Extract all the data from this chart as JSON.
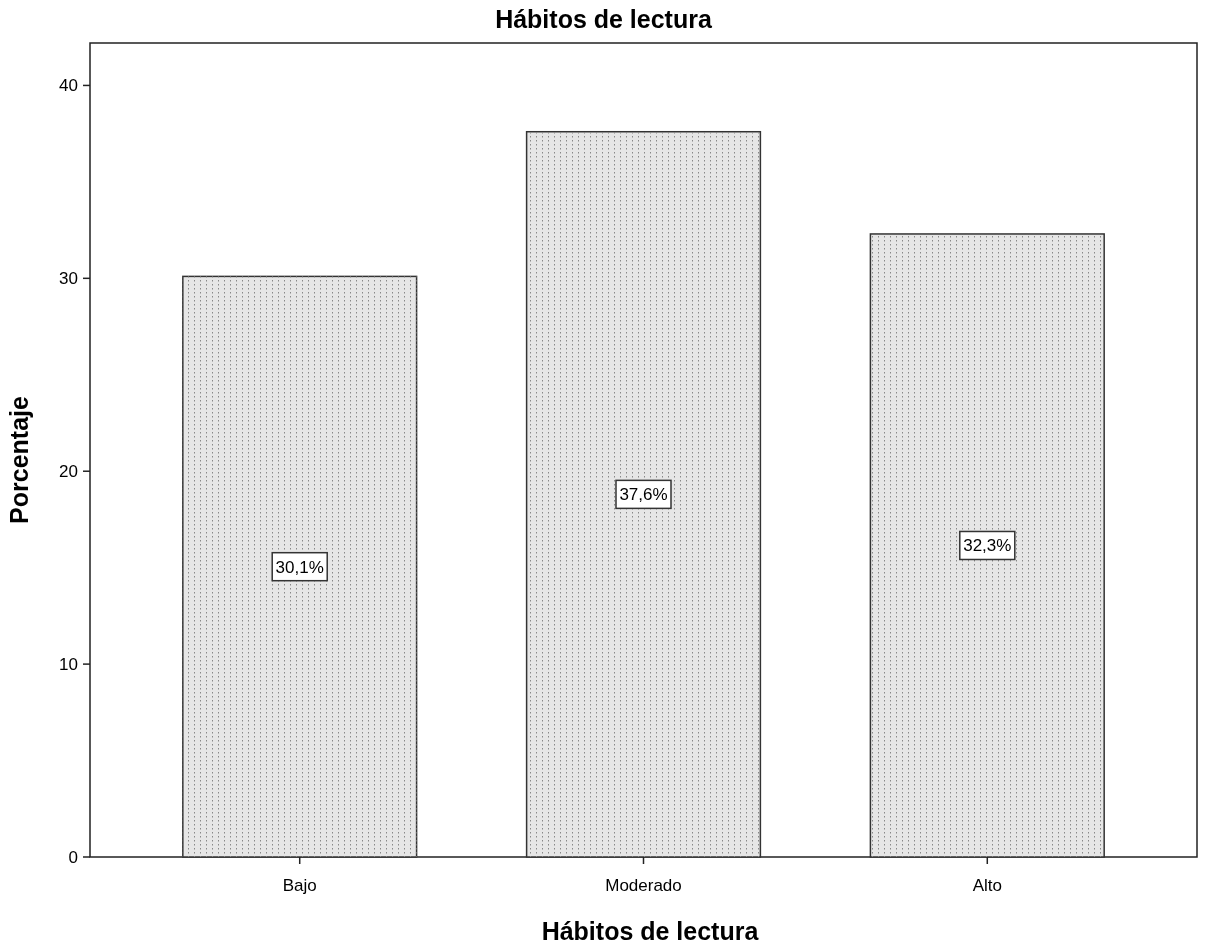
{
  "chart_data": {
    "type": "bar",
    "title": "Hábitos de lectura",
    "xlabel": "Hábitos de lectura",
    "ylabel": "Porcentaje",
    "categories": [
      "Bajo",
      "Moderado",
      "Alto"
    ],
    "values": [
      30.1,
      37.6,
      32.3
    ],
    "value_labels": [
      "30,1%",
      "37,6%",
      "32,3%"
    ],
    "color": "#e6e6e6",
    "ylim": [
      0,
      42.2
    ],
    "yticks": [
      0,
      10,
      20,
      30,
      40
    ],
    "grid": false
  }
}
